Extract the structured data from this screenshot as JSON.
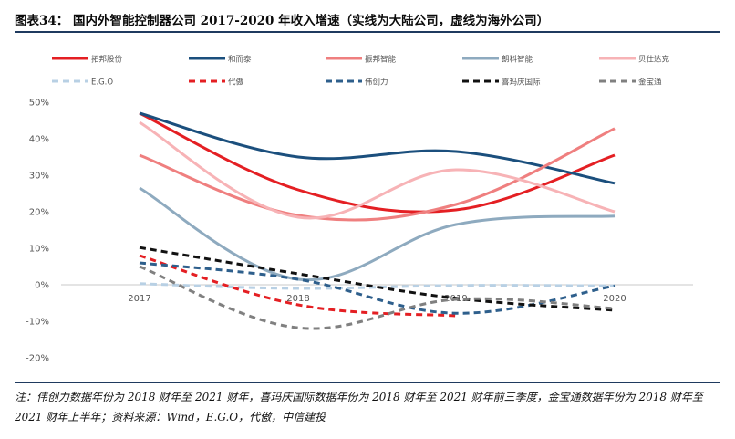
{
  "header": {
    "title": "图表34： 国内外智能控制器公司 2017-2020 年收入增速（实线为大陆公司，虚线为海外公司）"
  },
  "footer": {
    "note": "注：伟创力数据年份为 2018 财年至 2021 财年，喜玛庆国际数据年份为 2018 财年至 2021 财年前三季度，金宝通数据年份为 2018 财年至 2021 财年上半年；资料来源：Wind，E.G.O，代傲，中信建投"
  },
  "chart_data": {
    "type": "line",
    "title": "",
    "xlabel": "",
    "ylabel": "",
    "categories": [
      "2017",
      "2018",
      "2019",
      "2020"
    ],
    "x_tick_labels": [
      "2017",
      "2018",
      "2019",
      "2020"
    ],
    "ylim": [
      -20,
      50
    ],
    "y_ticks": [
      -20,
      -10,
      0,
      10,
      20,
      30,
      40,
      50
    ],
    "y_tick_labels": [
      "-20%",
      "-10%",
      "0%",
      "10%",
      "20%",
      "30%",
      "40%",
      "50%"
    ],
    "grid": false,
    "legend_position": "top",
    "series": [
      {
        "name": "拓邦股份",
        "values": [
          47,
          26,
          20.5,
          35.5
        ],
        "color": "#e41f23",
        "dashed": false
      },
      {
        "name": "和而泰",
        "values": [
          47,
          35,
          36.5,
          27.8
        ],
        "color": "#1b4f7d",
        "dashed": false
      },
      {
        "name": "振邦智能",
        "values": [
          35.5,
          19,
          22,
          42.8
        ],
        "color": "#ef7f7f",
        "dashed": false
      },
      {
        "name": "朗科智能",
        "values": [
          26.5,
          1.5,
          16.5,
          18.8
        ],
        "color": "#8eaabf",
        "dashed": false
      },
      {
        "name": "贝仕达克",
        "values": [
          44.5,
          18.5,
          31.5,
          20
        ],
        "color": "#f7b3b6",
        "dashed": false
      },
      {
        "name": "E.G.O",
        "values": [
          0.3,
          -1,
          -0.2,
          -0.3
        ],
        "color": "#b8d0e4",
        "dashed": true
      },
      {
        "name": "代傲",
        "values": [
          8,
          -5.5,
          -8.5,
          null
        ],
        "color": "#e41f23",
        "dashed": true
      },
      {
        "name": "伟创力",
        "values": [
          6,
          1.5,
          -7.8,
          -0.3
        ],
        "color": "#2e5f8c",
        "dashed": true
      },
      {
        "name": "喜玛庆国际",
        "values": [
          10.2,
          3,
          -3.7,
          -7
        ],
        "color": "#111111",
        "dashed": true
      },
      {
        "name": "金宝通",
        "values": [
          5,
          -11.8,
          -4,
          -6.5
        ],
        "color": "#808080",
        "dashed": true
      }
    ]
  }
}
